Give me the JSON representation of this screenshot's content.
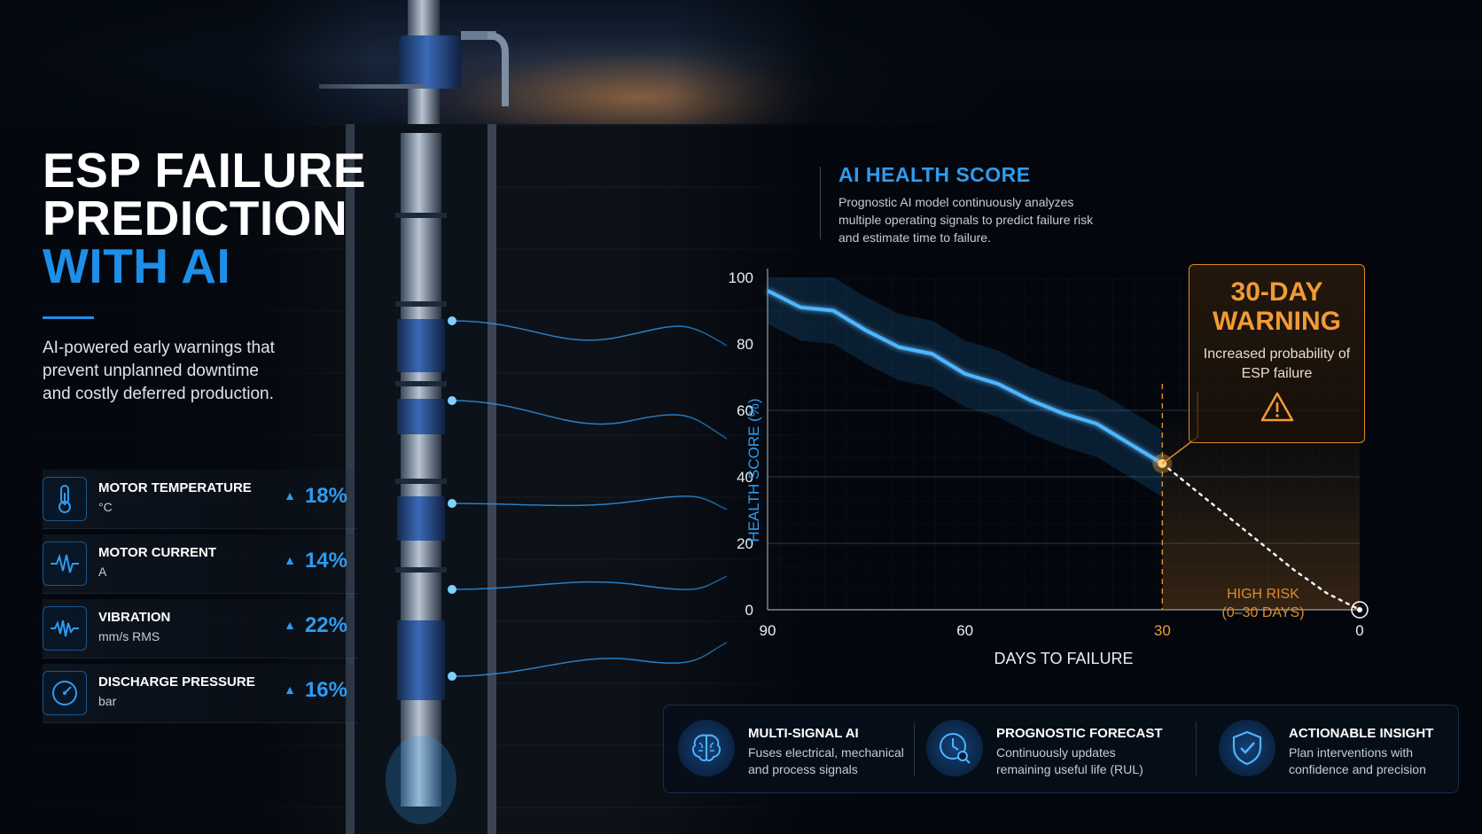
{
  "title": {
    "line1": "ESP FAILURE",
    "line2": "PREDICTION",
    "line3": "WITH AI"
  },
  "tagline": "AI-powered early warnings that prevent unplanned downtime and costly deferred production.",
  "metrics": [
    {
      "name": "MOTOR TEMPERATURE",
      "unit": "°C",
      "delta": "18%",
      "icon": "thermometer-icon"
    },
    {
      "name": "MOTOR CURRENT",
      "unit": "A",
      "delta": "14%",
      "icon": "current-waveform-icon"
    },
    {
      "name": "VIBRATION",
      "unit": "mm/s RMS",
      "delta": "22%",
      "icon": "vibration-waveform-icon"
    },
    {
      "name": "DISCHARGE PRESSURE",
      "unit": "bar",
      "delta": "16%",
      "icon": "pressure-gauge-icon"
    }
  ],
  "chart_header": {
    "title": "AI HEALTH SCORE",
    "description": "Prognostic AI model continuously analyzes multiple operating signals to predict failure risk and estimate time to failure."
  },
  "warning": {
    "title_line1": "30-DAY",
    "title_line2": "WARNING",
    "text": "Increased probability of ESP failure"
  },
  "high_risk": {
    "line1": "HIGH RISK",
    "line2": "(0–30 DAYS)"
  },
  "features": [
    {
      "title": "MULTI-SIGNAL AI",
      "desc": "Fuses electrical, mechanical and process signals",
      "icon": "brain-icon"
    },
    {
      "title": "PROGNOSTIC FORECAST",
      "desc": "Continuously updates remaining useful life (RUL)",
      "icon": "clock-forecast-icon"
    },
    {
      "title": "ACTIONABLE INSIGHT",
      "desc": "Plan interventions with confidence and precision",
      "icon": "shield-check-icon"
    }
  ],
  "colors": {
    "accent_blue": "#2f9bf0",
    "warning_orange": "#e08a2a",
    "background": "#03070d"
  },
  "chart_data": {
    "type": "line",
    "xlabel": "DAYS TO FAILURE",
    "ylabel": "HEALTH SCORE (%)",
    "xlim": [
      90,
      0
    ],
    "ylim": [
      0,
      100
    ],
    "x_ticks": [
      90,
      60,
      30,
      0
    ],
    "y_ticks": [
      0,
      20,
      40,
      60,
      80,
      100
    ],
    "highlight_tick": 30,
    "series": [
      {
        "style": "solid",
        "x": [
          90,
          85,
          80,
          75,
          70,
          65,
          60,
          55,
          50,
          45,
          40,
          35,
          30
        ],
        "y": [
          96,
          91,
          90,
          84,
          79,
          77,
          71,
          68,
          63,
          59,
          56,
          50,
          44
        ],
        "band": 10
      },
      {
        "style": "dashed",
        "x": [
          30,
          25,
          20,
          15,
          10,
          5,
          0
        ],
        "y": [
          44,
          36,
          28,
          20,
          12,
          5,
          0
        ]
      }
    ],
    "marker_x": 30,
    "high_risk_range": [
      30,
      0
    ]
  }
}
